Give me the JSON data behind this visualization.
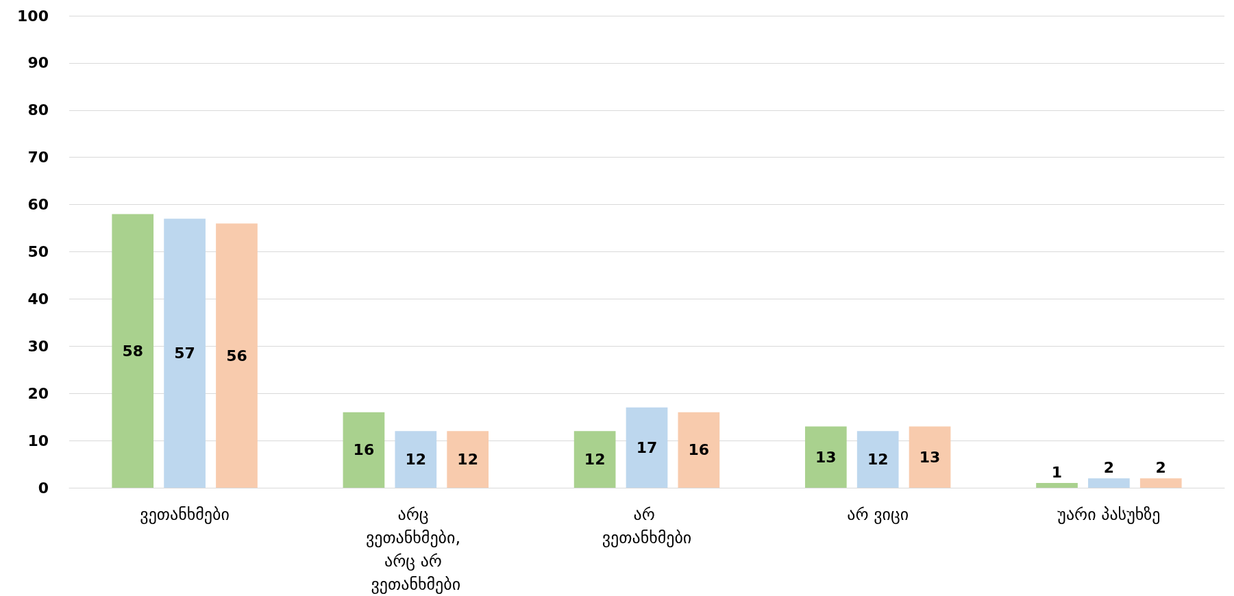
{
  "chart_data": {
    "type": "bar",
    "categories": [
      "ვეთანხმები",
      "არც ვეთანხმები, არც არ ვეთანხმები",
      "არ ვეთანხმები",
      "არ ვიცი",
      "უარი პასუხზე"
    ],
    "series": [
      {
        "color": "#a9d18e",
        "values": [
          58,
          16,
          12,
          13,
          1
        ]
      },
      {
        "color": "#bdd7ee",
        "values": [
          57,
          12,
          17,
          12,
          2
        ]
      },
      {
        "color": "#f8cbad",
        "values": [
          56,
          12,
          16,
          13,
          2
        ]
      }
    ],
    "ylim": [
      0,
      100
    ],
    "yticks": [
      0,
      10,
      20,
      30,
      40,
      50,
      60,
      70,
      80,
      90,
      100
    ],
    "grid": "y",
    "data_labels": true
  }
}
